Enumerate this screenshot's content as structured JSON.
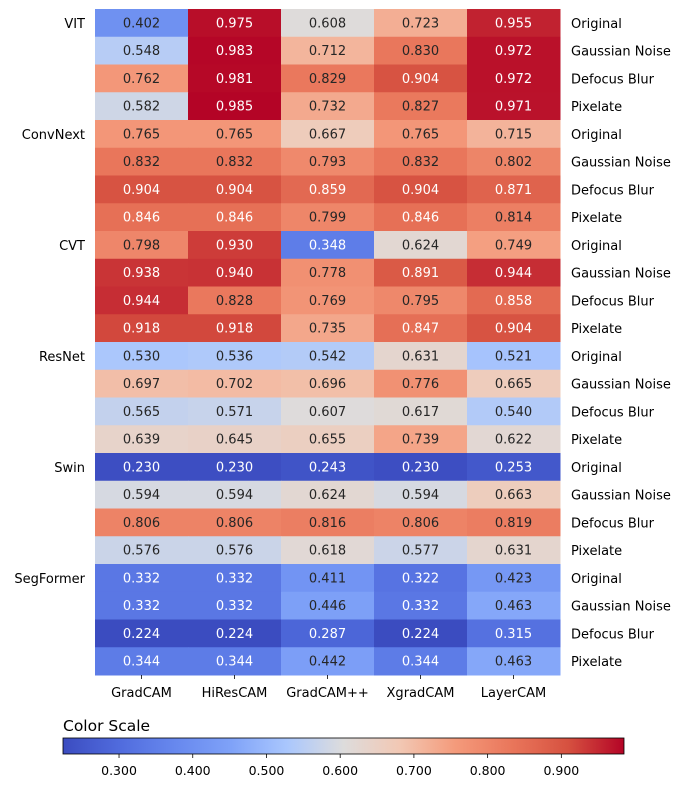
{
  "chart_data": {
    "type": "heatmap",
    "x_categories": [
      "GradCAM",
      "HiResCAM",
      "GradCAM++",
      "XgradCAM",
      "LayerCAM"
    ],
    "models": [
      "VIT",
      "ConvNext",
      "CVT",
      "ResNet",
      "Swin",
      "SegFormer"
    ],
    "conditions": [
      "Original",
      "Gaussian Noise",
      "Defocus Blur",
      "Pixelate"
    ],
    "values": [
      [
        0.402,
        0.975,
        0.608,
        0.723,
        0.955
      ],
      [
        0.548,
        0.983,
        0.712,
        0.83,
        0.972
      ],
      [
        0.762,
        0.981,
        0.829,
        0.904,
        0.972
      ],
      [
        0.582,
        0.985,
        0.732,
        0.827,
        0.971
      ],
      [
        0.765,
        0.765,
        0.667,
        0.765,
        0.715
      ],
      [
        0.832,
        0.832,
        0.793,
        0.832,
        0.802
      ],
      [
        0.904,
        0.904,
        0.859,
        0.904,
        0.871
      ],
      [
        0.846,
        0.846,
        0.799,
        0.846,
        0.814
      ],
      [
        0.798,
        0.93,
        0.348,
        0.624,
        0.749
      ],
      [
        0.938,
        0.94,
        0.778,
        0.891,
        0.944
      ],
      [
        0.944,
        0.828,
        0.769,
        0.795,
        0.858
      ],
      [
        0.918,
        0.918,
        0.735,
        0.847,
        0.904
      ],
      [
        0.53,
        0.536,
        0.542,
        0.631,
        0.521
      ],
      [
        0.697,
        0.702,
        0.696,
        0.776,
        0.665
      ],
      [
        0.565,
        0.571,
        0.607,
        0.617,
        0.54
      ],
      [
        0.639,
        0.645,
        0.655,
        0.739,
        0.622
      ],
      [
        0.23,
        0.23,
        0.243,
        0.23,
        0.253
      ],
      [
        0.594,
        0.594,
        0.624,
        0.594,
        0.663
      ],
      [
        0.806,
        0.806,
        0.816,
        0.806,
        0.819
      ],
      [
        0.576,
        0.576,
        0.618,
        0.577,
        0.631
      ],
      [
        0.332,
        0.332,
        0.411,
        0.322,
        0.423
      ],
      [
        0.332,
        0.332,
        0.446,
        0.332,
        0.463
      ],
      [
        0.224,
        0.224,
        0.287,
        0.224,
        0.315
      ],
      [
        0.344,
        0.344,
        0.442,
        0.344,
        0.463
      ]
    ],
    "colormap": "coolwarm",
    "vmin": 0.224,
    "vmax": 0.985,
    "colorbar": {
      "title": "Color Scale",
      "ticks": [
        0.3,
        0.4,
        0.5,
        0.6,
        0.7,
        0.8,
        0.9
      ],
      "tick_labels": [
        "0.300",
        "0.400",
        "0.500",
        "0.600",
        "0.700",
        "0.800",
        "0.900"
      ]
    }
  }
}
